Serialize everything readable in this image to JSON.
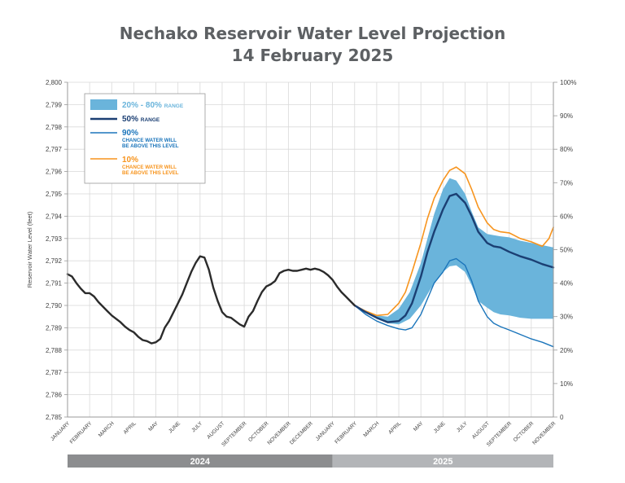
{
  "title": {
    "line1": "Nechako Reservoir Water Level Projection",
    "line2": "14 February 2025"
  },
  "chart_data": {
    "type": "line",
    "ylabel": "Reservoir Water Level (feet)",
    "ylim": [
      2785,
      2800
    ],
    "yticks": [
      "2,785",
      "2,786",
      "2,787",
      "2,788",
      "2,789",
      "2,790",
      "2,791",
      "2,792",
      "2,793",
      "2,794",
      "2,795",
      "2,796",
      "2,797",
      "2,798",
      "2,799",
      "2,800"
    ],
    "y2ticks": [
      "0",
      "10%",
      "20%",
      "30%",
      "40%",
      "50%",
      "60%",
      "70%",
      "80%",
      "90%",
      "100%"
    ],
    "x_unit": "months since 1 January 2024",
    "months": [
      "JANUARY",
      "FEBRUARY",
      "MARCH",
      "APRIL",
      "MAY",
      "JUNE",
      "JULY",
      "AUGUST",
      "SEPTEMBER",
      "OCTOBER",
      "NOVEMBER",
      "DECEMBER",
      "JANUARY",
      "FEBRUARY",
      "MARCH",
      "APRIL",
      "MAY",
      "JUNE",
      "JULY",
      "AUGUST",
      "SEPTEMBER",
      "OCTOBER",
      "NOVEMBER"
    ],
    "years": [
      {
        "label": "2024",
        "start": 0,
        "end": 12,
        "color": "#8c8d8f"
      },
      {
        "label": "2025",
        "start": 12,
        "end": 22,
        "color": "#b3b5b8"
      }
    ],
    "legend": {
      "range": {
        "main": "20% - 80%",
        "suffix": "RANGE"
      },
      "median": {
        "main": "50%",
        "suffix": "RANGE"
      },
      "p90": {
        "main": "90%",
        "sub1": "CHANCE WATER WILL",
        "sub2": "BE ABOVE THIS LEVEL"
      },
      "p10": {
        "main": "10%",
        "sub1": "CHANCE WATER WILL",
        "sub2": "BE ABOVE THIS LEVEL"
      }
    },
    "colors": {
      "band": "#6ab4db",
      "median": "#1b3f73",
      "p90": "#1b75bb",
      "p10": "#f7941d",
      "historical": "#2b2b2b"
    },
    "series": [
      {
        "name": "Historical",
        "x": [
          0,
          0.2,
          0.4,
          0.6,
          0.8,
          1.0,
          1.2,
          1.4,
          1.6,
          1.8,
          2.0,
          2.2,
          2.4,
          2.6,
          2.8,
          3.0,
          3.2,
          3.4,
          3.6,
          3.8,
          4.0,
          4.2,
          4.4,
          4.6,
          4.8,
          5.0,
          5.2,
          5.4,
          5.6,
          5.8,
          6.0,
          6.2,
          6.4,
          6.6,
          6.8,
          7.0,
          7.2,
          7.4,
          7.6,
          7.8,
          8.0,
          8.2,
          8.4,
          8.6,
          8.8,
          9.0,
          9.2,
          9.4,
          9.6,
          9.8,
          10.0,
          10.2,
          10.4,
          10.6,
          10.8,
          11.0,
          11.2,
          11.4,
          11.6,
          11.8,
          12.0,
          12.2,
          12.4,
          12.6,
          12.8,
          13.0
        ],
        "values": [
          2791.4,
          2791.3,
          2791.0,
          2790.75,
          2790.55,
          2790.55,
          2790.4,
          2790.15,
          2789.95,
          2789.75,
          2789.55,
          2789.4,
          2789.25,
          2789.05,
          2788.9,
          2788.8,
          2788.6,
          2788.45,
          2788.4,
          2788.3,
          2788.35,
          2788.5,
          2789.0,
          2789.3,
          2789.7,
          2790.1,
          2790.5,
          2791.0,
          2791.5,
          2791.9,
          2792.2,
          2792.15,
          2791.6,
          2790.8,
          2790.2,
          2789.7,
          2789.5,
          2789.45,
          2789.3,
          2789.15,
          2789.05,
          2789.5,
          2789.75,
          2790.2,
          2790.6,
          2790.85,
          2790.95,
          2791.1,
          2791.45,
          2791.55,
          2791.6,
          2791.55,
          2791.55,
          2791.6,
          2791.65,
          2791.6,
          2791.65,
          2791.6,
          2791.5,
          2791.35,
          2791.15,
          2790.85,
          2790.6,
          2790.4,
          2790.2,
          2790.0
        ]
      },
      {
        "name": "20% - 80% upper",
        "x": [
          13.0,
          13.5,
          14.0,
          14.5,
          15.0,
          15.5,
          16.0,
          16.3,
          16.6,
          17.0,
          17.3,
          17.6,
          18.0,
          18.3,
          18.6,
          19.0,
          19.3,
          19.6,
          20.0,
          20.5,
          21.0,
          21.5,
          22.0
        ],
        "values": [
          2790.0,
          2789.75,
          2789.55,
          2789.5,
          2789.85,
          2790.6,
          2791.9,
          2793.0,
          2794.1,
          2795.2,
          2795.7,
          2795.6,
          2795.0,
          2794.2,
          2793.5,
          2793.2,
          2793.15,
          2793.1,
          2793.05,
          2792.9,
          2792.8,
          2792.7,
          2792.6
        ]
      },
      {
        "name": "20% - 80% lower",
        "x": [
          13.0,
          13.5,
          14.0,
          14.5,
          15.0,
          15.5,
          16.0,
          16.3,
          16.6,
          17.0,
          17.3,
          17.6,
          18.0,
          18.3,
          18.6,
          19.0,
          19.3,
          19.6,
          20.0,
          20.5,
          21.0,
          21.5,
          22.0
        ],
        "values": [
          2790.0,
          2789.7,
          2789.4,
          2789.2,
          2789.15,
          2789.4,
          2790.0,
          2790.5,
          2791.0,
          2791.5,
          2791.75,
          2791.8,
          2791.5,
          2790.9,
          2790.2,
          2789.9,
          2789.7,
          2789.6,
          2789.55,
          2789.45,
          2789.4,
          2789.4,
          2789.4
        ]
      },
      {
        "name": "50%",
        "x": [
          13.0,
          13.5,
          14.0,
          14.5,
          15.0,
          15.3,
          15.6,
          16.0,
          16.3,
          16.6,
          17.0,
          17.3,
          17.6,
          18.0,
          18.3,
          18.6,
          19.0,
          19.3,
          19.6,
          20.0,
          20.5,
          21.0,
          21.5,
          22.0
        ],
        "values": [
          2790.0,
          2789.7,
          2789.45,
          2789.25,
          2789.3,
          2789.55,
          2790.1,
          2791.3,
          2792.4,
          2793.3,
          2794.3,
          2794.9,
          2795.0,
          2794.6,
          2794.0,
          2793.3,
          2792.8,
          2792.65,
          2792.6,
          2792.4,
          2792.2,
          2792.05,
          2791.85,
          2791.7
        ]
      },
      {
        "name": "90%",
        "x": [
          13.0,
          13.5,
          14.0,
          14.5,
          15.0,
          15.3,
          15.6,
          16.0,
          16.3,
          16.6,
          17.0,
          17.3,
          17.6,
          18.0,
          18.3,
          18.6,
          19.0,
          19.3,
          19.6,
          20.0,
          20.5,
          21.0,
          21.5,
          22.0
        ],
        "values": [
          2790.0,
          2789.6,
          2789.3,
          2789.1,
          2788.95,
          2788.9,
          2789.0,
          2789.6,
          2790.3,
          2791.0,
          2791.5,
          2792.0,
          2792.1,
          2791.8,
          2791.1,
          2790.2,
          2789.5,
          2789.2,
          2789.05,
          2788.9,
          2788.7,
          2788.5,
          2788.35,
          2788.15
        ]
      },
      {
        "name": "10%",
        "x": [
          13.0,
          13.5,
          14.0,
          14.5,
          15.0,
          15.3,
          15.6,
          16.0,
          16.3,
          16.6,
          17.0,
          17.3,
          17.6,
          18.0,
          18.3,
          18.6,
          19.0,
          19.3,
          19.6,
          20.0,
          20.5,
          21.0,
          21.5,
          21.8,
          22.0
        ],
        "values": [
          2790.0,
          2789.75,
          2789.55,
          2789.6,
          2790.1,
          2790.6,
          2791.5,
          2792.8,
          2793.9,
          2794.8,
          2795.6,
          2796.05,
          2796.2,
          2795.9,
          2795.2,
          2794.4,
          2793.7,
          2793.4,
          2793.3,
          2793.25,
          2793.0,
          2792.85,
          2792.65,
          2793.0,
          2793.5
        ]
      }
    ]
  }
}
